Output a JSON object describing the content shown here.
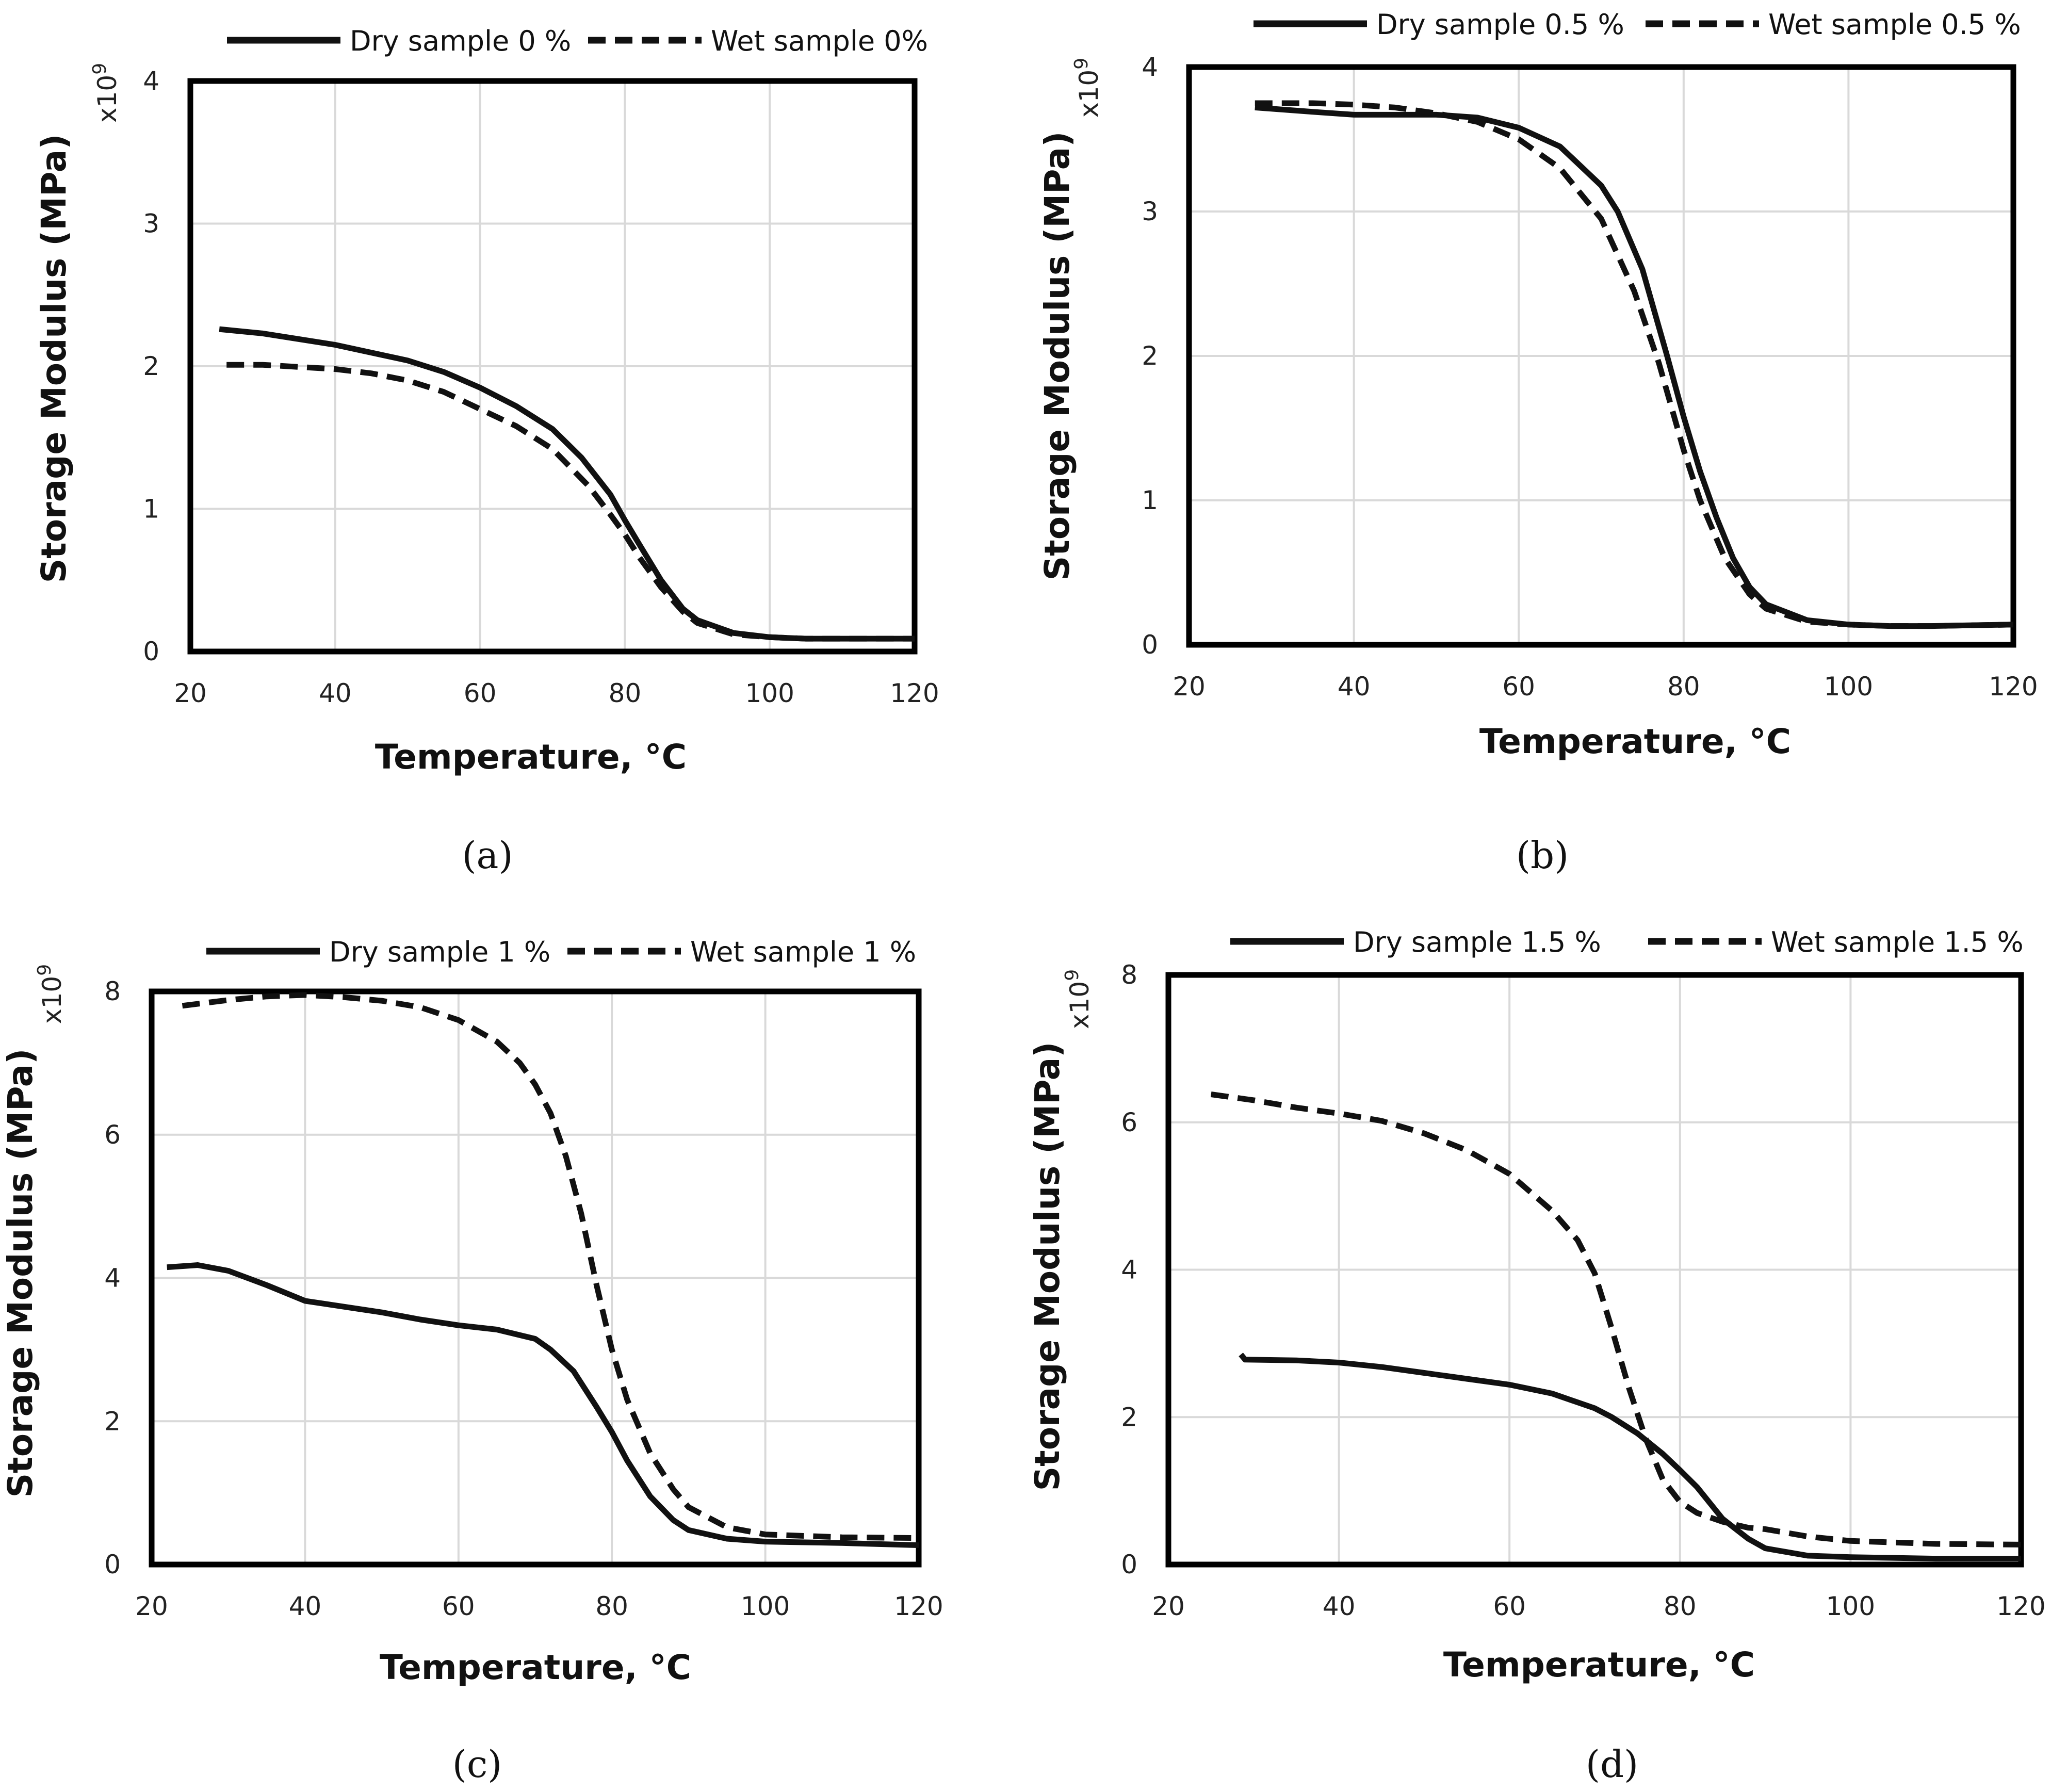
{
  "chart_data": [
    {
      "type": "line",
      "panel": "a",
      "caption": "(a)",
      "xlabel": "Temperature, °C",
      "ylabel": "Storage Modulus (MPa)",
      "y_exponent_base": "x10",
      "y_exponent_power": "9",
      "xlim": [
        20,
        120
      ],
      "ylim": [
        0,
        4
      ],
      "xticks": [
        "20",
        "40",
        "60",
        "80",
        "100",
        "120"
      ],
      "yticks": [
        "0",
        "1",
        "2",
        "3",
        "4"
      ],
      "grid": true,
      "legend": "top",
      "series": [
        {
          "name": "Dry sample 0 %",
          "style": "solid",
          "x": [
            24,
            30,
            40,
            50,
            55,
            60,
            65,
            70,
            74,
            78,
            80,
            82,
            85,
            88,
            90,
            95,
            100,
            105,
            110,
            120
          ],
          "y": [
            2.26,
            2.23,
            2.15,
            2.04,
            1.96,
            1.85,
            1.72,
            1.56,
            1.36,
            1.1,
            0.92,
            0.75,
            0.5,
            0.3,
            0.22,
            0.13,
            0.1,
            0.09,
            0.09,
            0.09
          ]
        },
        {
          "name": "Wet sample 0%",
          "style": "dashed",
          "x": [
            25,
            30,
            40,
            45,
            50,
            55,
            60,
            65,
            70,
            75,
            78,
            80,
            82,
            85,
            88,
            90,
            95,
            100,
            105,
            110,
            120
          ],
          "y": [
            2.01,
            2.01,
            1.98,
            1.95,
            1.9,
            1.82,
            1.7,
            1.58,
            1.42,
            1.16,
            0.96,
            0.82,
            0.66,
            0.45,
            0.28,
            0.2,
            0.12,
            0.1,
            0.09,
            0.09,
            0.09
          ]
        }
      ]
    },
    {
      "type": "line",
      "panel": "b",
      "caption": "(b)",
      "xlabel": "Temperature, °C",
      "ylabel": "Storage Modulus (MPa)",
      "y_exponent_base": "x10",
      "y_exponent_power": "9",
      "xlim": [
        20,
        120
      ],
      "ylim": [
        0,
        4
      ],
      "xticks": [
        "20",
        "40",
        "60",
        "80",
        "100",
        "120"
      ],
      "yticks": [
        "0",
        "1",
        "2",
        "3",
        "4"
      ],
      "grid": true,
      "legend": "top",
      "series": [
        {
          "name": "Dry sample 0.5 %",
          "style": "solid",
          "x": [
            28,
            35,
            40,
            50,
            55,
            60,
            65,
            70,
            72,
            75,
            78,
            80,
            82,
            84,
            86,
            88,
            90,
            95,
            100,
            105,
            110,
            120
          ],
          "y": [
            3.72,
            3.69,
            3.67,
            3.67,
            3.65,
            3.58,
            3.45,
            3.18,
            3.0,
            2.6,
            2.0,
            1.58,
            1.2,
            0.88,
            0.6,
            0.4,
            0.28,
            0.17,
            0.14,
            0.13,
            0.13,
            0.14
          ]
        },
        {
          "name": "Wet sample 0.5 %",
          "style": "dashed",
          "x": [
            28,
            35,
            40,
            45,
            50,
            55,
            60,
            65,
            70,
            74,
            77,
            80,
            82,
            85,
            88,
            90,
            95,
            100,
            105,
            110,
            120
          ],
          "y": [
            3.75,
            3.75,
            3.74,
            3.72,
            3.68,
            3.62,
            3.5,
            3.3,
            2.95,
            2.45,
            1.95,
            1.35,
            1.0,
            0.6,
            0.35,
            0.25,
            0.16,
            0.14,
            0.13,
            0.13,
            0.14
          ]
        }
      ]
    },
    {
      "type": "line",
      "panel": "c",
      "caption": "(c)",
      "xlabel": "Temperature, °C",
      "ylabel": "Storage Modulus (MPa)",
      "y_exponent_base": "x10",
      "y_exponent_power": "9",
      "xlim": [
        20,
        120
      ],
      "ylim": [
        0,
        8
      ],
      "xticks": [
        "20",
        "40",
        "60",
        "80",
        "100",
        "120"
      ],
      "yticks": [
        "0",
        "2",
        "4",
        "6",
        "8"
      ],
      "grid": true,
      "legend": "top",
      "series": [
        {
          "name": "Dry sample 1 %",
          "style": "solid",
          "x": [
            22,
            26,
            30,
            35,
            40,
            45,
            50,
            55,
            60,
            65,
            70,
            72,
            75,
            78,
            80,
            82,
            85,
            88,
            90,
            95,
            100,
            110,
            120
          ],
          "y": [
            4.15,
            4.18,
            4.1,
            3.9,
            3.68,
            3.6,
            3.52,
            3.42,
            3.34,
            3.28,
            3.15,
            3.0,
            2.7,
            2.2,
            1.85,
            1.45,
            0.95,
            0.62,
            0.48,
            0.36,
            0.32,
            0.3,
            0.27
          ]
        },
        {
          "name": "Wet sample 1 %",
          "style": "dashed",
          "x": [
            24,
            30,
            35,
            40,
            45,
            50,
            55,
            60,
            65,
            68,
            70,
            72,
            74,
            76,
            78,
            80,
            82,
            85,
            88,
            90,
            95,
            100,
            110,
            120
          ],
          "y": [
            7.8,
            7.88,
            7.93,
            7.95,
            7.92,
            7.87,
            7.78,
            7.6,
            7.3,
            7.0,
            6.7,
            6.3,
            5.7,
            4.9,
            3.9,
            3.0,
            2.3,
            1.55,
            1.05,
            0.8,
            0.52,
            0.42,
            0.38,
            0.37
          ]
        }
      ]
    },
    {
      "type": "line",
      "panel": "d",
      "caption": "(d)",
      "xlabel": "Temperature, °C",
      "ylabel": "Storage Modulus (MPa)",
      "y_exponent_base": "x10",
      "y_exponent_power": "9",
      "xlim": [
        20,
        120
      ],
      "ylim": [
        0,
        8
      ],
      "xticks": [
        "20",
        "40",
        "60",
        "80",
        "100",
        "120"
      ],
      "yticks": [
        "0",
        "2",
        "4",
        "6",
        "8"
      ],
      "grid": true,
      "legend": "top",
      "series": [
        {
          "name": "Dry sample 1.5 %",
          "style": "solid",
          "x": [
            28.5,
            29,
            35,
            40,
            45,
            50,
            55,
            60,
            65,
            70,
            72,
            75,
            78,
            80,
            82,
            85,
            88,
            90,
            95,
            100,
            105,
            110,
            120
          ],
          "y": [
            2.85,
            2.78,
            2.77,
            2.74,
            2.68,
            2.6,
            2.52,
            2.44,
            2.32,
            2.12,
            2.0,
            1.78,
            1.5,
            1.28,
            1.05,
            0.62,
            0.35,
            0.22,
            0.12,
            0.1,
            0.09,
            0.08,
            0.08
          ]
        },
        {
          "name": "Wet sample 1.5 %",
          "style": "dashed",
          "x": [
            25,
            30,
            35,
            40,
            45,
            50,
            55,
            60,
            65,
            68,
            70,
            72,
            74,
            76,
            78,
            80,
            82,
            85,
            88,
            90,
            95,
            100,
            110,
            120
          ],
          "y": [
            6.38,
            6.3,
            6.2,
            6.12,
            6.02,
            5.85,
            5.62,
            5.3,
            4.8,
            4.4,
            3.95,
            3.2,
            2.4,
            1.7,
            1.15,
            0.85,
            0.7,
            0.58,
            0.5,
            0.48,
            0.38,
            0.32,
            0.28,
            0.27
          ]
        }
      ]
    }
  ]
}
